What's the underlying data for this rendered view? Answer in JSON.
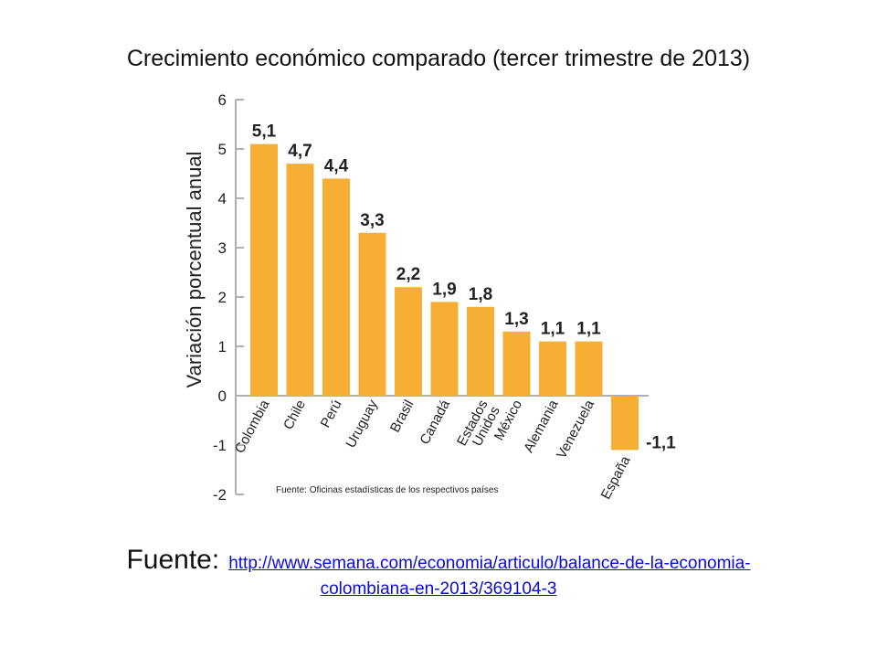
{
  "slide": {
    "title": "Crecimiento económico comparado (tercer trimestre de 2013)",
    "source_label": "Fuente:",
    "source_link_line1": "http://www.semana.com/economia/articulo/balance-de-la-economia-",
    "source_link_line2": "colombiana-en-2013/369104-3"
  },
  "colors": {
    "bar": "#F6AE35",
    "axis": "#b0b0b0",
    "text": "#222222"
  },
  "chart_data": {
    "type": "bar",
    "categories": [
      "Colombia",
      "Chile",
      "Perú",
      "Uruguay",
      "Brasil",
      "Canadá",
      "Estados Unidos",
      "México",
      "Alemania",
      "Venezuela",
      "España"
    ],
    "values": [
      5.1,
      4.7,
      4.4,
      3.3,
      2.2,
      1.9,
      1.8,
      1.3,
      1.1,
      1.1,
      -1.1
    ],
    "value_labels": [
      "5,1",
      "4,7",
      "4,4",
      "3,3",
      "2,2",
      "1,9",
      "1,8",
      "1,3",
      "1,1",
      "1,1",
      "-1,1"
    ],
    "ylabel": "Variación porcentual anual",
    "ylim": [
      -2,
      6
    ],
    "yticks": [
      "-2",
      "-1",
      "0",
      "1",
      "2",
      "3",
      "4",
      "5",
      "6"
    ],
    "note": "Fuente: Oficinas estadísticas de los respectivos países",
    "grid": false
  }
}
